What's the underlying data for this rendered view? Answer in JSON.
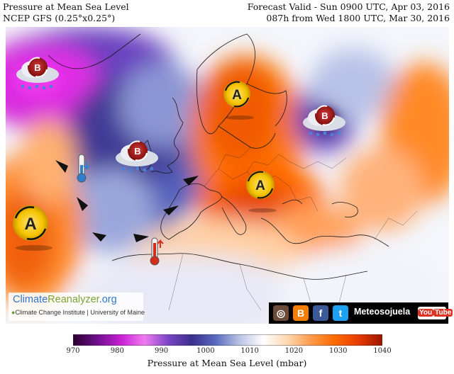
{
  "header": {
    "title": "Pressure at Mean Sea Level",
    "model": "NCEP GFS (0.25°x0.25°)",
    "valid": "Forecast Valid - Sun 0900 UTC, Apr 03, 2016",
    "lead": "087h from Wed 1800 UTC, Mar 30, 2016"
  },
  "colorbar": {
    "title": "Pressure at Mean Sea Level (mbar)",
    "ticks": [
      "970",
      "980",
      "990",
      "1000",
      "1010",
      "1020",
      "1030",
      "1040"
    ],
    "min": 970,
    "max": 1040,
    "stops": [
      "#2a0030",
      "#6e0f8c",
      "#c81fd4",
      "#f07cf0",
      "#7a44c4",
      "#3a2f8e",
      "#5a6bbf",
      "#b9c4e6",
      "#ffffff",
      "#ffd8b0",
      "#ff9a4a",
      "#ff6a00",
      "#e83c00",
      "#9c1400"
    ]
  },
  "branding": {
    "site_a": "Climate",
    "site_b": "Reanalyzer",
    "site_c": ".org",
    "institute": "Climate Change Institute | University of Maine",
    "channel": "Meteosojuela",
    "youtube_a": "You",
    "youtube_b": "Tube"
  },
  "symbols": {
    "high_letter": "A",
    "low_letter": "B",
    "highs": [
      "high-azores",
      "high-scandinavia",
      "high-balkans"
    ],
    "lows": [
      "low-greenland",
      "low-uk",
      "low-russia"
    ]
  },
  "colors": {
    "high_fill": "#ffd21a",
    "low_fill": "#b01c1c",
    "cold_marker": "#2f7fd0",
    "warm_marker": "#d42b1b"
  }
}
